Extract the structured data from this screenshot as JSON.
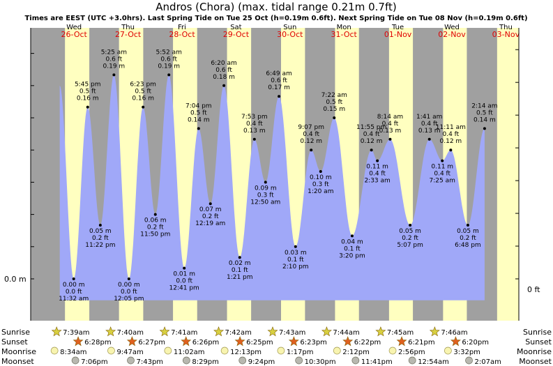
{
  "title": "Andros (Chora) (max. tidal range 0.21m 0.7ft)",
  "subtitle": "Times are EEST (UTC +3.0hrs). Last Spring Tide on Tue 25 Oct (h=0.19m 0.6ft). Next Spring Tide on Tue 08 Nov (h=0.19m 0.6ft)",
  "y_left_label": "0.0 m",
  "y_right_label": "0 ft",
  "colors": {
    "day": "#ffffc0",
    "night": "#a0a0a0",
    "tide": "#a0a8f8",
    "sunday": "#ff0000",
    "weekday": "#000000",
    "star_rise": "#d8d040",
    "star_set": "#e06020"
  },
  "days": [
    {
      "day": "Wed",
      "date": "26-Oct",
      "sunday": true
    },
    {
      "day": "Thu",
      "date": "27-Oct",
      "sunday": true
    },
    {
      "day": "Fri",
      "date": "28-Oct",
      "sunday": true
    },
    {
      "day": "Sat",
      "date": "29-Oct",
      "sunday": true
    },
    {
      "day": "Sun",
      "date": "30-Oct",
      "sunday": true
    },
    {
      "day": "Mon",
      "date": "31-Oct",
      "sunday": true
    },
    {
      "day": "Tue",
      "date": "01-Nov",
      "sunday": true
    },
    {
      "day": "Wed",
      "date": "02-Nov",
      "sunday": true
    },
    {
      "day": "Thu",
      "date": "03-Nov",
      "sunday": true
    }
  ],
  "chart_data": {
    "type": "area",
    "title": "Andros (Chora) (max. tidal range 0.21m 0.7ft)",
    "x_unit": "hours from 26-Oct 00:00 (EEST)",
    "xlim": [
      -12,
      192
    ],
    "ylim_m": [
      -0.05,
      0.23
    ],
    "extremes": [
      {
        "time": "11:32 am",
        "m": "0.00 m",
        "ft": "0.0 ft",
        "t": 11.53,
        "h": 0.0
      },
      {
        "time": "5:45 pm",
        "m": "0.16 m",
        "ft": "0.5 ft",
        "t": 17.75,
        "h": 0.16
      },
      {
        "time": "11:22 pm",
        "m": "0.05 m",
        "ft": "0.2 ft",
        "t": 23.37,
        "h": 0.05
      },
      {
        "time": "5:25 am",
        "m": "0.19 m",
        "ft": "0.6 ft",
        "t": 29.42,
        "h": 0.19
      },
      {
        "time": "12:05 pm",
        "m": "0.00 m",
        "ft": "0.0 ft",
        "t": 36.08,
        "h": 0.0
      },
      {
        "time": "6:23 pm",
        "m": "0.16 m",
        "ft": "0.5 ft",
        "t": 42.38,
        "h": 0.16
      },
      {
        "time": "11:50 pm",
        "m": "0.06 m",
        "ft": "0.2 ft",
        "t": 47.83,
        "h": 0.06
      },
      {
        "time": "5:52 am",
        "m": "0.19 m",
        "ft": "0.6 ft",
        "t": 53.87,
        "h": 0.19
      },
      {
        "time": "12:41 pm",
        "m": "0.01 m",
        "ft": "0.0 ft",
        "t": 60.68,
        "h": 0.01
      },
      {
        "time": "7:04 pm",
        "m": "0.14 m",
        "ft": "0.5 ft",
        "t": 67.07,
        "h": 0.14
      },
      {
        "time": "12:19 am",
        "m": "0.07 m",
        "ft": "0.2 ft",
        "t": 72.32,
        "h": 0.07
      },
      {
        "time": "6:20 am",
        "m": "0.18 m",
        "ft": "0.6 ft",
        "t": 78.33,
        "h": 0.18
      },
      {
        "time": "1:21 pm",
        "m": "0.02 m",
        "ft": "0.1 ft",
        "t": 85.35,
        "h": 0.02
      },
      {
        "time": "7:53 pm",
        "m": "0.13 m",
        "ft": "0.4 ft",
        "t": 91.88,
        "h": 0.13
      },
      {
        "time": "12:50 am",
        "m": "0.09 m",
        "ft": "0.3 ft",
        "t": 96.83,
        "h": 0.09
      },
      {
        "time": "6:49 am",
        "m": "0.17 m",
        "ft": "0.6 ft",
        "t": 102.82,
        "h": 0.17
      },
      {
        "time": "2:10 pm",
        "m": "0.03 m",
        "ft": "0.1 ft",
        "t": 110.17,
        "h": 0.03
      },
      {
        "time": "9:07 pm",
        "m": "0.12 m",
        "ft": "0.4 ft",
        "t": 117.12,
        "h": 0.12
      },
      {
        "time": "1:20 am",
        "m": "0.10 m",
        "ft": "0.3 ft",
        "t": 121.33,
        "h": 0.1
      },
      {
        "time": "7:22 am",
        "m": "0.15 m",
        "ft": "0.5 ft",
        "t": 127.37,
        "h": 0.15
      },
      {
        "time": "3:20 pm",
        "m": "0.04 m",
        "ft": "0.1 ft",
        "t": 135.33,
        "h": 0.04
      },
      {
        "time": "11:55 pm",
        "m": "0.12 m",
        "ft": "0.4 ft",
        "t": 143.92,
        "h": 0.12
      },
      {
        "time": "2:33 am",
        "m": "0.11 m",
        "ft": "0.4 ft",
        "t": 146.55,
        "h": 0.11
      },
      {
        "time": "8:14 am",
        "m": "0.13 m",
        "ft": "0.4 ft",
        "t": 152.23,
        "h": 0.13
      },
      {
        "time": "5:07 pm",
        "m": "0.05 m",
        "ft": "0.2 ft",
        "t": 161.12,
        "h": 0.05
      },
      {
        "time": "1:41 am",
        "m": "0.13 m",
        "ft": "0.4 ft",
        "t": 169.68,
        "h": 0.13
      },
      {
        "time": "7:25 am",
        "m": "0.11 m",
        "ft": "0.4 ft",
        "t": 175.42,
        "h": 0.11
      },
      {
        "time": "11:11 am",
        "m": "0.12 m",
        "ft": "0.4 ft",
        "t": 179.18,
        "h": 0.12
      },
      {
        "time": "6:48 pm",
        "m": "0.05 m",
        "ft": "0.2 ft",
        "t": 186.8,
        "h": 0.05
      },
      {
        "time": "2:14 am",
        "m": "0.14 m",
        "ft": "0.5 ft",
        "t": 194.23,
        "h": 0.14
      }
    ],
    "sun": [
      {
        "rise": "7:39am",
        "set": "6:28pm",
        "rise_t": 7.65,
        "set_t": 18.47
      },
      {
        "rise": "7:40am",
        "set": "6:27pm",
        "rise_t": 31.67,
        "set_t": 42.45
      },
      {
        "rise": "7:41am",
        "set": "6:26pm",
        "rise_t": 55.68,
        "set_t": 66.43
      },
      {
        "rise": "7:42am",
        "set": "6:25pm",
        "rise_t": 79.7,
        "set_t": 90.42
      },
      {
        "rise": "7:43am",
        "set": "6:23pm",
        "rise_t": 103.72,
        "set_t": 114.38
      },
      {
        "rise": "7:44am",
        "set": "6:22pm",
        "rise_t": 127.73,
        "set_t": 138.37
      },
      {
        "rise": "7:45am",
        "set": "6:21pm",
        "rise_t": 151.75,
        "set_t": 162.35
      },
      {
        "rise": "7:46am",
        "set": "6:20pm",
        "rise_t": 175.77,
        "set_t": 186.33
      }
    ],
    "moonrise": [
      {
        "time": "8:34am",
        "t": 8.57
      },
      {
        "time": "9:47am",
        "t": 33.78
      },
      {
        "time": "11:02am",
        "t": 59.03
      },
      {
        "time": "12:13pm",
        "t": 84.22
      },
      {
        "time": "1:17pm",
        "t": 109.28
      },
      {
        "time": "2:12pm",
        "t": 134.2
      },
      {
        "time": "2:56pm",
        "t": 158.93
      },
      {
        "time": "3:32pm",
        "t": 183.53
      }
    ],
    "moonset": [
      {
        "time": "7:06pm",
        "t": 19.1
      },
      {
        "time": "7:43pm",
        "t": 43.72
      },
      {
        "time": "8:29pm",
        "t": 68.48
      },
      {
        "time": "9:24pm",
        "t": 93.4
      },
      {
        "time": "10:30pm",
        "t": 118.5
      },
      {
        "time": "11:41pm",
        "t": 143.68
      },
      {
        "time": "12:54am",
        "t": 168.9
      },
      {
        "time": "2:07am",
        "t": 194.12
      }
    ]
  },
  "rows": {
    "sunrise": "Sunrise",
    "sunset": "Sunset",
    "moonrise": "Moonrise",
    "moonset": "Moonset"
  }
}
